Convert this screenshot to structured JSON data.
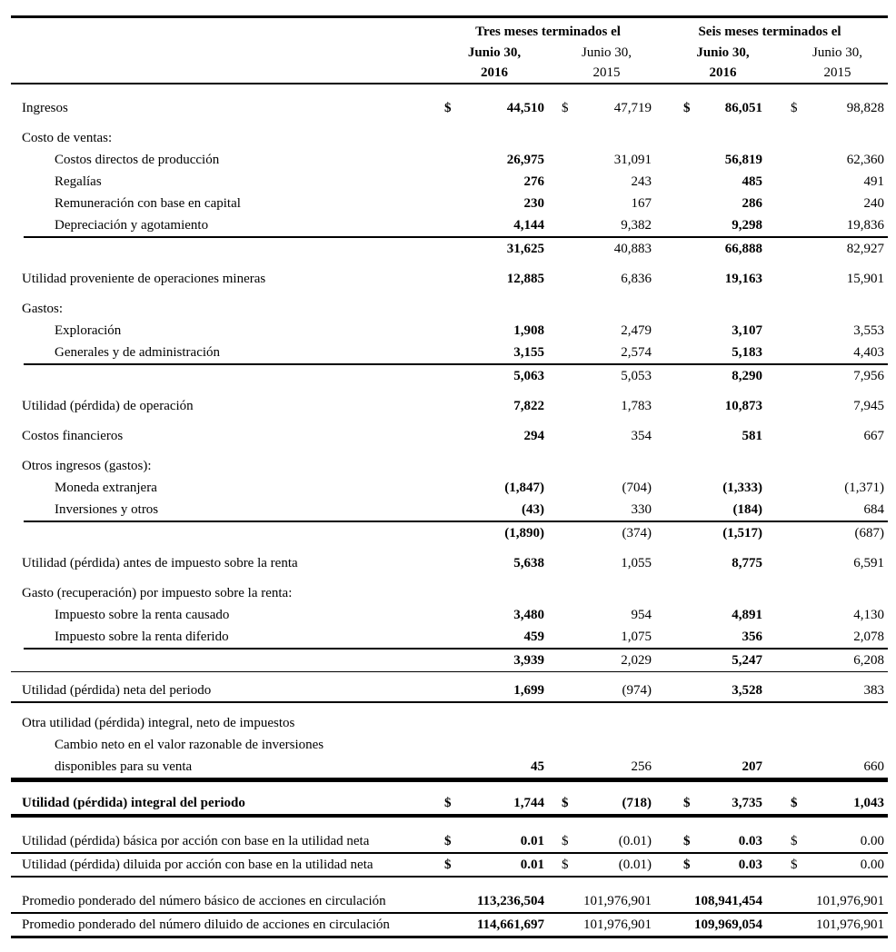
{
  "table": {
    "currency_symbol": "$",
    "period_groups": [
      "Tres meses terminados el",
      "Seis meses terminados el"
    ],
    "columns": [
      {
        "month": "Junio 30,",
        "year": "2016"
      },
      {
        "month": "Junio 30,",
        "year": "2015"
      },
      {
        "month": "Junio 30,",
        "year": "2016"
      },
      {
        "month": "Junio 30,",
        "year": "2015"
      }
    ],
    "rows": [
      {
        "label": "Ingresos",
        "indent": 0,
        "dollar": true,
        "values": [
          "44,510",
          "47,719",
          "86,051",
          "98,828"
        ],
        "space": 14
      },
      {
        "label": "Costo de ventas:",
        "indent": 0,
        "space": 9
      },
      {
        "label": "Costos directos de producción",
        "indent": 1,
        "values": [
          "26,975",
          "31,091",
          "56,819",
          "62,360"
        ]
      },
      {
        "label": "Regalías",
        "indent": 1,
        "values": [
          "276",
          "243",
          "485",
          "491"
        ]
      },
      {
        "label": "Remuneración con base en capital",
        "indent": 1,
        "values": [
          "230",
          "167",
          "286",
          "240"
        ]
      },
      {
        "label": "Depreciación y agotamiento",
        "indent": 1,
        "values": [
          "4,144",
          "9,382",
          "9,298",
          "19,836"
        ],
        "line_below": "partial"
      },
      {
        "label": "",
        "indent": 0,
        "values": [
          "31,625",
          "40,883",
          "66,888",
          "82,927"
        ]
      },
      {
        "label": "Utilidad proveniente de operaciones mineras",
        "indent": 0,
        "values": [
          "12,885",
          "6,836",
          "19,163",
          "15,901"
        ],
        "space": 9
      },
      {
        "label": "Gastos:",
        "indent": 0,
        "space": 9
      },
      {
        "label": "Exploración",
        "indent": 1,
        "values": [
          "1,908",
          "2,479",
          "3,107",
          "3,553"
        ]
      },
      {
        "label": "Generales y de administración",
        "indent": 1,
        "values": [
          "3,155",
          "2,574",
          "5,183",
          "4,403"
        ],
        "line_below": "partial"
      },
      {
        "label": "",
        "indent": 0,
        "values": [
          "5,063",
          "5,053",
          "8,290",
          "7,956"
        ]
      },
      {
        "label": "Utilidad (pérdida) de operación",
        "indent": 0,
        "values": [
          "7,822",
          "1,783",
          "10,873",
          "7,945"
        ],
        "space": 9
      },
      {
        "label": "Costos financieros",
        "indent": 0,
        "values": [
          "294",
          "354",
          "581",
          "667"
        ],
        "space": 9
      },
      {
        "label": "Otros ingresos (gastos):",
        "indent": 0,
        "space": 9
      },
      {
        "label": "Moneda extranjera",
        "indent": 1,
        "values": [
          "(1,847)",
          "(704)",
          "(1,333)",
          "(1,371)"
        ]
      },
      {
        "label": "Inversiones y otros",
        "indent": 1,
        "values": [
          "(43)",
          "330",
          "(184)",
          "684"
        ],
        "line_below": "partial"
      },
      {
        "label": "",
        "indent": 0,
        "values": [
          "(1,890)",
          "(374)",
          "(1,517)",
          "(687)"
        ]
      },
      {
        "label": "Utilidad (pérdida) antes de impuesto sobre la renta",
        "indent": 0,
        "values": [
          "5,638",
          "1,055",
          "8,775",
          "6,591"
        ],
        "space": 9
      },
      {
        "label": "Gasto (recuperación) por impuesto sobre la renta:",
        "indent": 0,
        "space": 9
      },
      {
        "label": "Impuesto sobre la renta causado",
        "indent": 1,
        "values": [
          "3,480",
          "954",
          "4,891",
          "4,130"
        ]
      },
      {
        "label": "Impuesto sobre la renta diferido",
        "indent": 1,
        "values": [
          "459",
          "1,075",
          "356",
          "2,078"
        ],
        "line_below": "partial"
      },
      {
        "label": "",
        "indent": 0,
        "values": [
          "3,939",
          "2,029",
          "5,247",
          "6,208"
        ]
      },
      {
        "label": "Utilidad (pérdida) neta del periodo",
        "indent": 0,
        "values": [
          "1,699",
          "(974)",
          "3,528",
          "383"
        ],
        "space": 8,
        "line_above": "thin",
        "line_below": "medium"
      },
      {
        "label": "Otra utilidad (pérdida) integral, neto de impuestos",
        "indent": 0,
        "space": 10
      },
      {
        "label": "Cambio neto en el valor razonable de inversiones",
        "indent": 1
      },
      {
        "label": "disponibles para su venta",
        "indent": 1,
        "values": [
          "45",
          "256",
          "207",
          "660"
        ],
        "line_below": "thick"
      },
      {
        "label": "Utilidad (pérdida) integral del periodo",
        "indent": 0,
        "bold": true,
        "dollar": true,
        "values": [
          "1,744",
          "(718)",
          "3,735",
          "1,043"
        ],
        "space": 11,
        "line_above": "medium",
        "line_below": "thick"
      },
      {
        "label": "Utilidad (pérdida) básica por acción con base en la utilidad neta",
        "indent": 0,
        "dollar": true,
        "values": [
          "0.01",
          "(0.01)",
          "0.03",
          "0.00"
        ],
        "space": 14,
        "line_above": "thin",
        "line_below": "medium"
      },
      {
        "label": "Utilidad (pérdida) diluida por acción con base en la utilidad neta",
        "indent": 0,
        "dollar": true,
        "values": [
          "0.01",
          "(0.01)",
          "0.03",
          "0.00"
        ],
        "line_below": "medium"
      },
      {
        "label": "Promedio ponderado del número básico de acciones en circulación",
        "indent": 0,
        "values": [
          "113,236,504",
          "101,976,901",
          "108,941,454",
          "101,976,901"
        ],
        "space": 14,
        "line_below": "medium"
      },
      {
        "label": "Promedio ponderado del número diluido de acciones en circulación",
        "indent": 0,
        "values": [
          "114,661,697",
          "101,976,901",
          "109,969,054",
          "101,976,901"
        ],
        "line_below": "thick"
      }
    ]
  }
}
